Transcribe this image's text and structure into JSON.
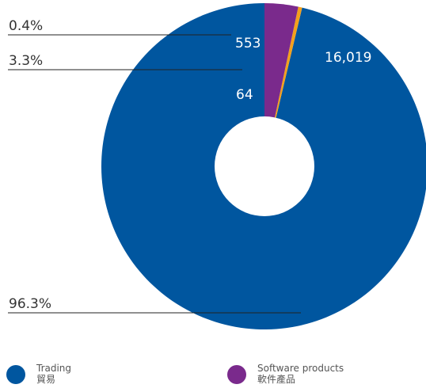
{
  "chart_data": {
    "type": "pie",
    "donut": true,
    "slices": [
      {
        "name": "Trading 貿易",
        "value": 16019,
        "percent_label": "96.3%",
        "color": "#00569f"
      },
      {
        "name": "",
        "value": 64,
        "percent_label": "0.4%",
        "color": "#f3a01c"
      },
      {
        "name": "Software products 軟件產品",
        "value": 553,
        "percent_label": "3.3%",
        "color": "#7a2a8c"
      }
    ],
    "value_labels": [
      "16,019",
      "64",
      "553"
    ],
    "legend_placement": "bottom"
  },
  "legend": [
    {
      "line1": "Trading",
      "line2": "貿易",
      "color": "#00569f"
    },
    {
      "line1": "Software products",
      "line2": "軟件產品",
      "color": "#7a2a8c"
    }
  ]
}
